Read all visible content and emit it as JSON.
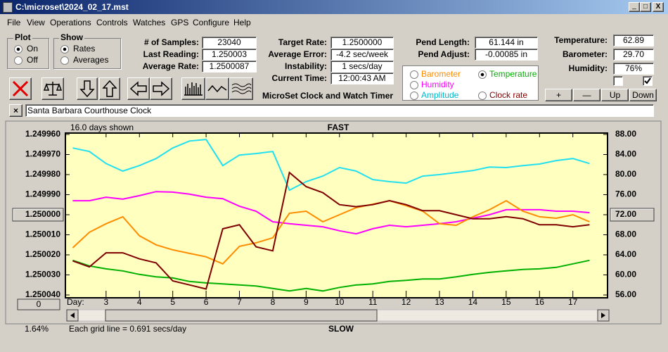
{
  "window": {
    "title": "C:\\microset\\2024_02_17.mst"
  },
  "menu": [
    "File",
    "View",
    "Operations",
    "Controls",
    "Watches",
    "GPS",
    "Configure",
    "Help"
  ],
  "plot": {
    "title": "Plot",
    "options": [
      "On",
      "Off"
    ],
    "selected": 0
  },
  "show": {
    "title": "Show",
    "options": [
      "Rates",
      "Averages"
    ],
    "selected": 0
  },
  "fields": [
    [
      {
        "label": "# of Samples:",
        "value": "23040"
      },
      {
        "label": "Last Reading:",
        "value": "1.250003"
      },
      {
        "label": "Average Rate:",
        "value": "1.2500087"
      }
    ],
    [
      {
        "label": "Target Rate:",
        "value": "1.2500000"
      },
      {
        "label": "Average Error:",
        "value": "-4.2 sec/week"
      },
      {
        "label": "Instability:",
        "value": "1 secs/day"
      },
      {
        "label": "Current Time:",
        "value": "12:00:43 AM"
      }
    ],
    [
      {
        "label": "Pend Length:",
        "value": "61.144 in"
      },
      {
        "label": "Pend Adjust:",
        "value": "-0.00085 in"
      }
    ],
    [
      {
        "label": "Temperature:",
        "value": "62.89"
      },
      {
        "label": "Barometer:",
        "value": "29.70"
      },
      {
        "label": "Humidity:",
        "value": "76%"
      }
    ]
  ],
  "app_title": "MicroSet Clock and Watch Timer",
  "checkboxes": [
    false,
    true
  ],
  "buttons": [
    "+",
    "—",
    "Up",
    "Down"
  ],
  "clock_name": "Santa Barbara Courthouse Clock",
  "chart_data": {
    "type": "line",
    "days_shown": "16.0 days shown",
    "top_label": "FAST",
    "bottom_label": "SLOW",
    "grid_note": "Each grid line = 0.691 secs/day",
    "percent": "1.64%",
    "offset_button": "0",
    "x_label": "Day:",
    "selected_series": 3,
    "x": [
      2.0,
      2.5,
      3.0,
      3.5,
      4.0,
      4.5,
      5.0,
      5.5,
      6.0,
      6.5,
      7.0,
      7.5,
      8.0,
      8.5,
      9.0,
      9.5,
      10.0,
      10.5,
      11.0,
      11.5,
      12.0,
      12.5,
      13.0,
      13.5,
      14.0,
      14.5,
      15.0,
      15.5,
      16.0,
      16.5,
      17.0,
      17.5
    ],
    "xlim": [
      1.78,
      18.04
    ],
    "xticks": [
      3,
      4,
      5,
      6,
      7,
      8,
      9,
      10,
      11,
      12,
      13,
      14,
      15,
      16,
      17
    ],
    "ylim": [
      1.25004,
      1.24996
    ],
    "yticks": [
      {
        "value": 1.24996,
        "label": "1.249960"
      },
      {
        "value": 1.24997,
        "label": "1.249970"
      },
      {
        "value": 1.24998,
        "label": "1.249980"
      },
      {
        "value": 1.24999,
        "label": "1.249990"
      },
      {
        "value": 1.25,
        "label": "1.250000"
      },
      {
        "value": 1.25001,
        "label": "1.250010"
      },
      {
        "value": 1.25002,
        "label": "1.250020"
      },
      {
        "value": 1.25003,
        "label": "1.250030"
      },
      {
        "value": 1.25004,
        "label": "1.250040"
      }
    ],
    "y2lim": [
      56,
      88
    ],
    "y2ticks": [
      {
        "value": 88,
        "label": "88.00"
      },
      {
        "value": 84,
        "label": "84.00"
      },
      {
        "value": 80,
        "label": "80.00"
      },
      {
        "value": 76,
        "label": "76.00"
      },
      {
        "value": 72,
        "label": "72.00"
      },
      {
        "value": 68,
        "label": "68.00"
      },
      {
        "value": 64,
        "label": "64.00"
      },
      {
        "value": 60,
        "label": "60.00"
      },
      {
        "value": 56,
        "label": "56.00"
      }
    ],
    "series": [
      {
        "name": "Barometer",
        "color": "#ff8c00",
        "axis": "y2",
        "values": [
          65.4,
          68.5,
          70.2,
          71.6,
          67.8,
          66.0,
          65.0,
          64.3,
          63.6,
          62.2,
          65.7,
          66.4,
          67.4,
          72.3,
          72.7,
          70.6,
          72.0,
          73.4,
          74.1,
          74.8,
          73.8,
          72.7,
          70.2,
          69.9,
          71.6,
          73.0,
          74.8,
          72.7,
          71.6,
          71.3,
          72.0,
          70.6
        ]
      },
      {
        "name": "Humidity",
        "color": "#ff00ff",
        "axis": "y2",
        "values": [
          74.8,
          74.8,
          75.5,
          75.1,
          75.8,
          76.6,
          76.5,
          76.1,
          75.5,
          75.2,
          73.7,
          72.7,
          70.6,
          70.2,
          69.9,
          69.6,
          68.8,
          68.2,
          69.2,
          69.9,
          69.6,
          69.9,
          70.2,
          70.6,
          71.3,
          72.0,
          73.0,
          73.0,
          73.0,
          72.7,
          72.7,
          72.4
        ]
      },
      {
        "name": "Amplitude",
        "color": "#22e0f0",
        "axis": "y2",
        "values": [
          85.3,
          84.6,
          82.2,
          80.7,
          81.8,
          83.2,
          85.3,
          86.7,
          87.0,
          81.8,
          83.9,
          84.2,
          84.6,
          76.9,
          78.6,
          79.7,
          81.4,
          80.7,
          79.0,
          78.6,
          78.3,
          79.7,
          80.0,
          80.4,
          80.8,
          81.5,
          81.4,
          81.8,
          82.1,
          82.8,
          83.2,
          82.2
        ]
      },
      {
        "name": "Temperature",
        "color": "#00b000",
        "axis": "y2",
        "values": [
          62.9,
          61.8,
          61.2,
          60.8,
          60.1,
          59.6,
          59.4,
          58.7,
          58.4,
          58.2,
          58.0,
          57.8,
          57.3,
          56.8,
          57.3,
          56.8,
          57.5,
          58.0,
          58.2,
          58.7,
          58.9,
          59.2,
          59.2,
          59.6,
          60.1,
          60.5,
          60.8,
          61.1,
          61.2,
          61.5,
          62.2,
          62.9
        ]
      },
      {
        "name": "Clock rate",
        "color": "#800000",
        "values": [
          1.250023,
          1.250026,
          1.250019,
          1.250019,
          1.250022,
          1.250024,
          1.250033,
          1.250035,
          1.250037,
          1.250007,
          1.250005,
          1.250016,
          1.250018,
          1.249979,
          1.249986,
          1.249989,
          1.249995,
          1.249996,
          1.249995,
          1.249993,
          1.249995,
          1.249998,
          1.249998,
          1.25,
          1.250002,
          1.250002,
          1.250001,
          1.250002,
          1.250005,
          1.250005,
          1.250006,
          1.250005
        ]
      }
    ]
  }
}
